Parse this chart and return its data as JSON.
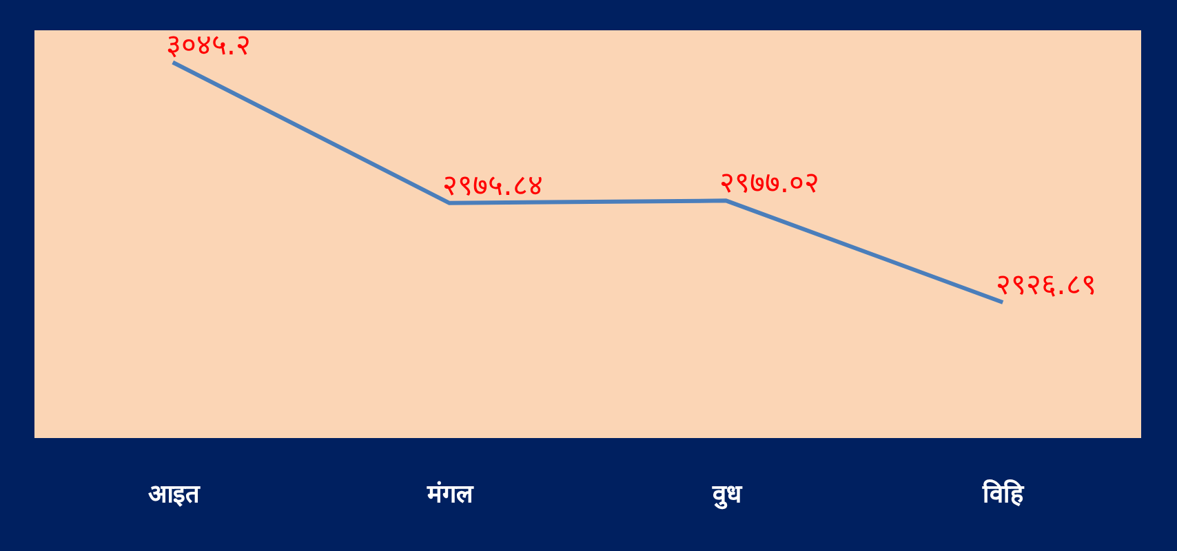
{
  "chart_data": {
    "type": "line",
    "categories": [
      "आइत",
      "मंगल",
      "वुध",
      "विहि"
    ],
    "series": [
      {
        "color": "#4a7ebb",
        "values": [
          3045.2,
          2975.84,
          2977.02,
          2926.89
        ],
        "value_labels": [
          "३०४५.२",
          "२९७५.८४",
          "२९७७.०२",
          "२९२६.८९"
        ]
      }
    ],
    "ylim": [
      2860,
      3061
    ],
    "tick_labels": "x",
    "grid": false,
    "marker": "none",
    "line_style": "solid"
  }
}
